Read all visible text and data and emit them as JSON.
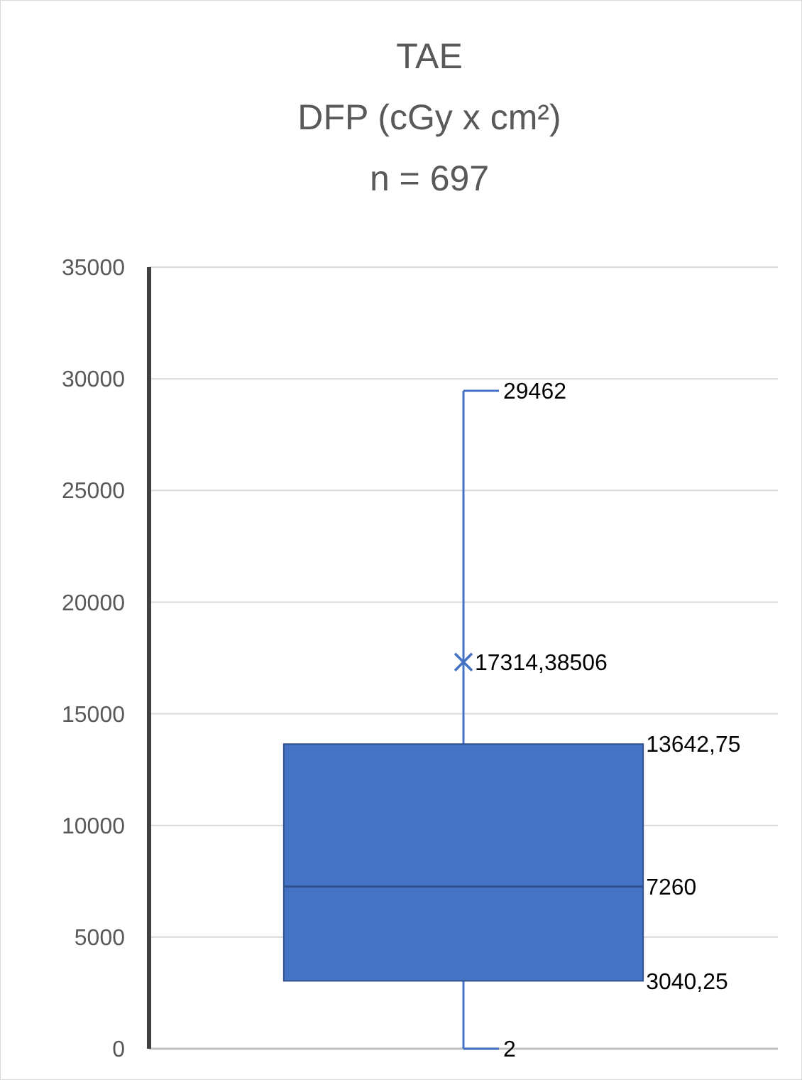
{
  "chart_data": {
    "type": "box",
    "title": "TAE\nDFP (cGy x cm²)\nn = 697",
    "categories": [
      null
    ],
    "boxes": [
      {
        "low": 2,
        "q1": 3040.25,
        "median": 7260,
        "q3": 13642.75,
        "high": 29462,
        "mean": 17314.38506
      }
    ],
    "color": "#4472c4",
    "ylim": [
      0,
      35000
    ],
    "yticks": [
      0,
      5000,
      10000,
      15000,
      20000,
      25000,
      30000,
      35000
    ],
    "grid": "y",
    "annotations": [
      "29462",
      "17314,38506",
      "13642,75",
      "7260",
      "3040,25",
      "2"
    ]
  }
}
